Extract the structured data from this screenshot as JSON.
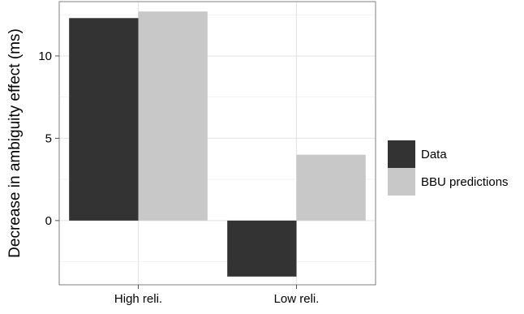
{
  "chart_data": {
    "type": "bar",
    "title": "",
    "xlabel": "",
    "ylabel": "Decrease in ambiguity effect (ms)",
    "categories": [
      "High reli.",
      "Low reli."
    ],
    "series": [
      {
        "name": "Data",
        "color": "#333333",
        "values": [
          12.3,
          -3.4
        ]
      },
      {
        "name": "BBU predictions",
        "color": "#c8c8c8",
        "values": [
          12.7,
          4.0
        ]
      }
    ],
    "ylim": [
      -3.9,
      13.3
    ],
    "yticks": [
      0,
      5,
      10
    ],
    "y_tick_labels": [
      "0",
      "5",
      "10"
    ],
    "grid": true,
    "legend_position": "right"
  }
}
